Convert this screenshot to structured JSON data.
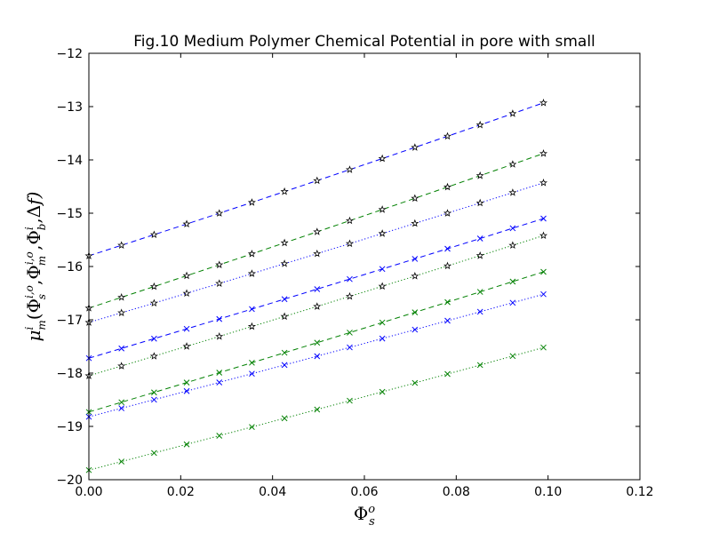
{
  "chart_data": {
    "type": "line",
    "title": "Fig.10 Medium Polymer Chemical Potential in pore with small",
    "xlabel": "Φ_s^o",
    "ylabel": "μ_m^i(Φ_s^{i,o},Φ_m^{i,o},Φ_b^i,Δf)",
    "xlim": [
      0.0,
      0.12
    ],
    "ylim": [
      -20,
      -12
    ],
    "xticks": [
      0.0,
      0.02,
      0.04,
      0.06,
      0.08,
      0.1,
      0.12
    ],
    "xtick_labels": [
      "0.00",
      "0.02",
      "0.04",
      "0.06",
      "0.08",
      "0.10",
      "0.12"
    ],
    "yticks": [
      -20,
      -19,
      -18,
      -17,
      -16,
      -15,
      -14,
      -13,
      -12
    ],
    "ytick_labels": [
      "−20",
      "−19",
      "−18",
      "−17",
      "−16",
      "−15",
      "−14",
      "−13",
      "−12"
    ],
    "grid": false,
    "x": [
      0.0,
      0.0071,
      0.0142,
      0.0213,
      0.0284,
      0.0355,
      0.0426,
      0.0497,
      0.0568,
      0.0639,
      0.071,
      0.0781,
      0.0852,
      0.0923,
      0.099
    ],
    "series": [
      {
        "color": "#0000ff",
        "dash": "dashed",
        "marker": "star",
        "y_start": -15.8,
        "y_end": -12.93,
        "curvature": 0.12
      },
      {
        "color": "#008000",
        "dash": "dashed",
        "marker": "star",
        "y_start": -16.78,
        "y_end": -13.88,
        "curvature": 0.1
      },
      {
        "color": "#0000ff",
        "dash": "dotted",
        "marker": "star",
        "y_start": -17.05,
        "y_end": -14.43,
        "curvature": 0.1
      },
      {
        "color": "#0000ff",
        "dash": "dashed",
        "marker": "x",
        "y_start": -17.72,
        "y_end": -15.1,
        "curvature": 0.08
      },
      {
        "color": "#008000",
        "dash": "dotted",
        "marker": "star",
        "y_start": -18.05,
        "y_end": -15.42,
        "curvature": 0.08
      },
      {
        "color": "#008000",
        "dash": "dashed",
        "marker": "x",
        "y_start": -18.73,
        "y_end": -16.1,
        "curvature": 0.08
      },
      {
        "color": "#0000ff",
        "dash": "dotted",
        "marker": "x",
        "y_start": -18.82,
        "y_end": -16.52,
        "curvature": 0.07
      },
      {
        "color": "#008000",
        "dash": "dotted",
        "marker": "x",
        "y_start": -19.82,
        "y_end": -17.52,
        "curvature": 0.07
      }
    ]
  }
}
